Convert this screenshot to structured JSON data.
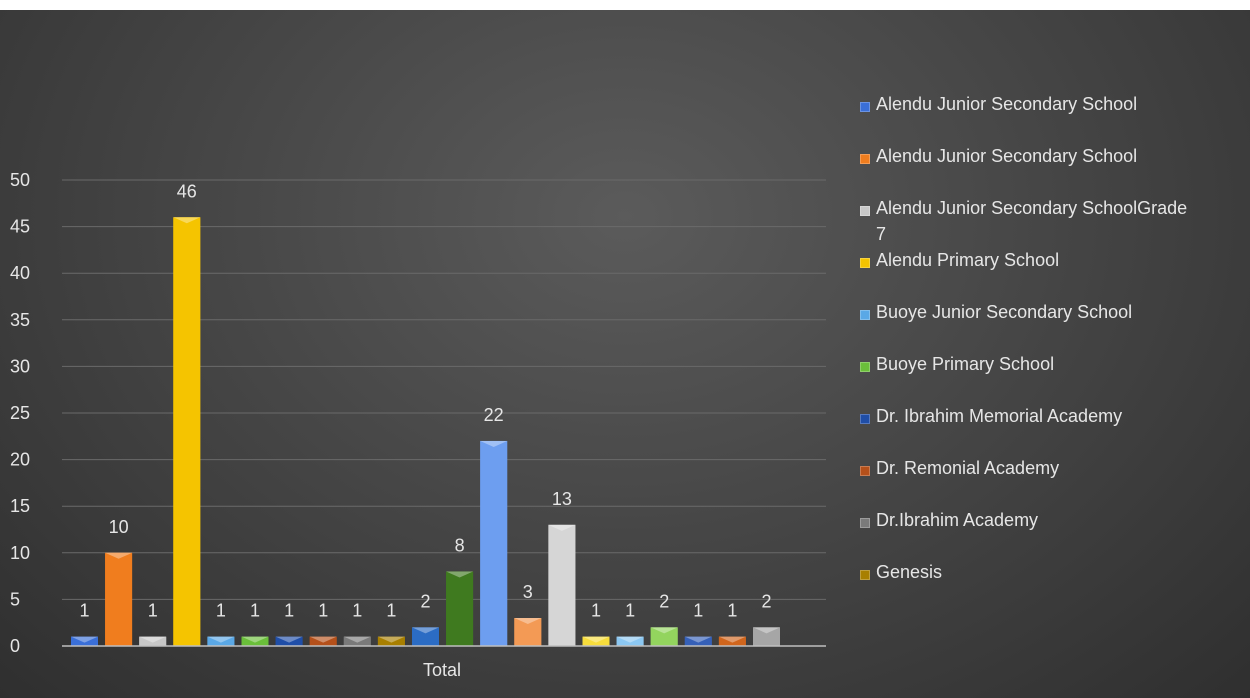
{
  "chart_data": {
    "type": "bar",
    "categories": [
      "Total"
    ],
    "ylim": [
      0,
      50
    ],
    "yticks": [
      0,
      5,
      10,
      15,
      20,
      25,
      30,
      35,
      40,
      45,
      50
    ],
    "grid": true,
    "legend_position": "right",
    "legend": [
      {
        "name": "Alendu Junior Secondary School",
        "color": "#3a6fd8"
      },
      {
        "name": "Alendu Junior Secondary School",
        "color": "#f07d1e"
      },
      {
        "name": "Alendu Junior Secondary SchoolGrade 7",
        "color": "#c8c8c8"
      },
      {
        "name": "Alendu Primary School",
        "color": "#f5c400"
      },
      {
        "name": "Buoye Junior Secondary School",
        "color": "#5aa8e6"
      },
      {
        "name": "Buoye Primary School",
        "color": "#6abf3a"
      },
      {
        "name": "Dr. Ibrahim Memorial Academy",
        "color": "#1f4ea8"
      },
      {
        "name": "Dr. Remonial Academy",
        "color": "#b5501a"
      },
      {
        "name": "Dr.Ibrahim Academy",
        "color": "#7a7a7a"
      },
      {
        "name": "Genesis",
        "color": "#a87f00"
      }
    ],
    "series": [
      {
        "values": [
          1
        ],
        "color": "#3a6fd8"
      },
      {
        "values": [
          10
        ],
        "color": "#f07d1e"
      },
      {
        "values": [
          1
        ],
        "color": "#c8c8c8"
      },
      {
        "values": [
          46
        ],
        "color": "#f5c400"
      },
      {
        "values": [
          1
        ],
        "color": "#5aa8e6"
      },
      {
        "values": [
          1
        ],
        "color": "#6abf3a"
      },
      {
        "values": [
          1
        ],
        "color": "#1f4ea8"
      },
      {
        "values": [
          1
        ],
        "color": "#b5501a"
      },
      {
        "values": [
          1
        ],
        "color": "#7a7a7a"
      },
      {
        "values": [
          1
        ],
        "color": "#a87f00"
      },
      {
        "values": [
          2
        ],
        "color": "#2b6cc4"
      },
      {
        "values": [
          8
        ],
        "color": "#3f7a1f"
      },
      {
        "values": [
          22
        ],
        "color": "#6d9ef0"
      },
      {
        "values": [
          3
        ],
        "color": "#f39a55"
      },
      {
        "values": [
          13
        ],
        "color": "#d6d6d6"
      },
      {
        "values": [
          1
        ],
        "color": "#f7dd3c"
      },
      {
        "values": [
          1
        ],
        "color": "#8cc8f2"
      },
      {
        "values": [
          2
        ],
        "color": "#93d45e"
      },
      {
        "values": [
          1
        ],
        "color": "#3560b8"
      },
      {
        "values": [
          1
        ],
        "color": "#d0651c"
      },
      {
        "values": [
          2
        ],
        "color": "#a6a6a6"
      }
    ]
  }
}
